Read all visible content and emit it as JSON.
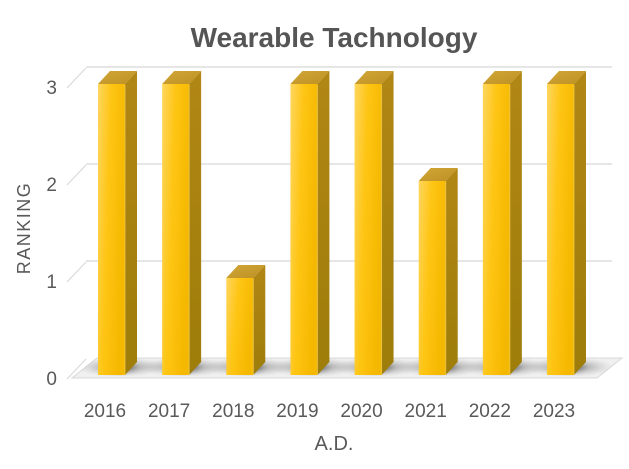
{
  "chart_data": {
    "type": "bar",
    "style": "3d-column",
    "title": "Wearable Tachnology",
    "categories": [
      "2016",
      "2017",
      "2018",
      "2019",
      "2020",
      "2021",
      "2022",
      "2023"
    ],
    "values": [
      3,
      3,
      1,
      3,
      3,
      2,
      3,
      3
    ],
    "xlabel": "A.D.",
    "ylabel": "RANKING",
    "ylim": [
      0,
      3
    ],
    "yticks": [
      0,
      1,
      2,
      3
    ],
    "grid": true,
    "legend": false,
    "colors": {
      "bar_front": "#FEC514",
      "bar_front_light": "#FFD65F",
      "bar_front_deep": "#F5B800",
      "bar_side_dark": "#9E7D0A",
      "bar_side_light": "#B18614",
      "bar_top": "#C89D2D",
      "bar_top_light": "#D2A637",
      "bar_edge_highlight": "#EDC94F",
      "gridline": "#D8D8D8",
      "floor": "#F0F0F0",
      "axis_text": "#595959",
      "title_text": "#555555",
      "background": "#FFFFFF"
    }
  }
}
